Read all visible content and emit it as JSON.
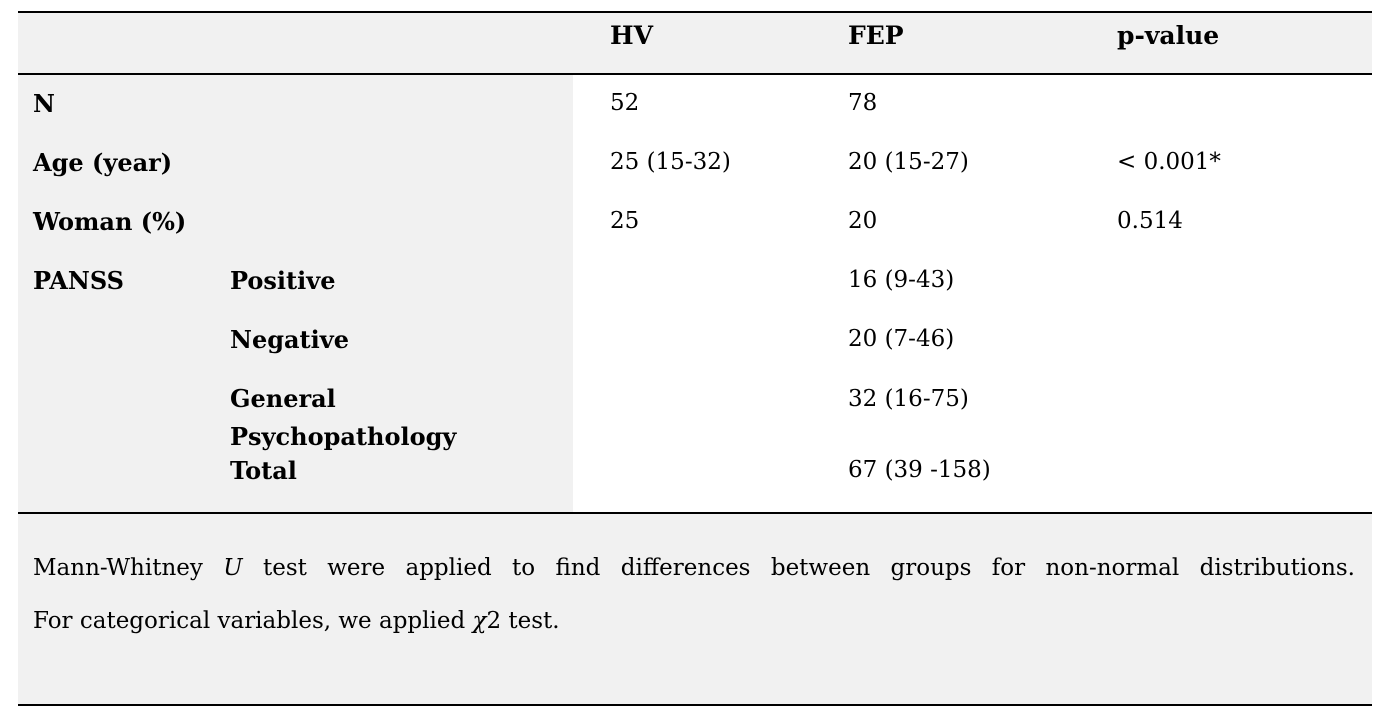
{
  "table": {
    "columns": {
      "hv": "HV",
      "fep": "FEP",
      "p": "p-value"
    },
    "rows": [
      {
        "label1": "N",
        "label2": "",
        "hv": "52",
        "fep": "78",
        "p": ""
      },
      {
        "label1": "Age (year)",
        "label2": "",
        "hv": "25 (15-32)",
        "fep": "20 (15-27)",
        "p": "< 0.001*"
      },
      {
        "label1": "Woman (%)",
        "label2": "",
        "hv": "25",
        "fep": "20",
        "p": "0.514"
      },
      {
        "label1": "PANSS",
        "label2": "Positive",
        "hv": "",
        "fep": "16 (9-43)",
        "p": ""
      },
      {
        "label1": "",
        "label2": "Negative",
        "hv": "",
        "fep": "20 (7-46)",
        "p": ""
      },
      {
        "label1": "",
        "label2": "General Psychopathology",
        "hv": "",
        "fep": "32 (16-75)",
        "p": ""
      },
      {
        "label1": "",
        "label2": "Total",
        "hv": "",
        "fep": "67 (39 -158)",
        "p": ""
      }
    ]
  },
  "footnote": {
    "line1_pre": "Mann-Whitney ",
    "line1_italic": "U",
    "line1_post": " test were applied to find differences between groups for non-normal distributions.",
    "line2_pre": "For categorical variables, we applied ",
    "line2_chi": "χ",
    "line2_post": "2 test."
  },
  "colors": {
    "row_label_background": "#f1f1f1",
    "data_cell_background": "#ffffff",
    "rule": "#000000",
    "text": "#000000"
  }
}
